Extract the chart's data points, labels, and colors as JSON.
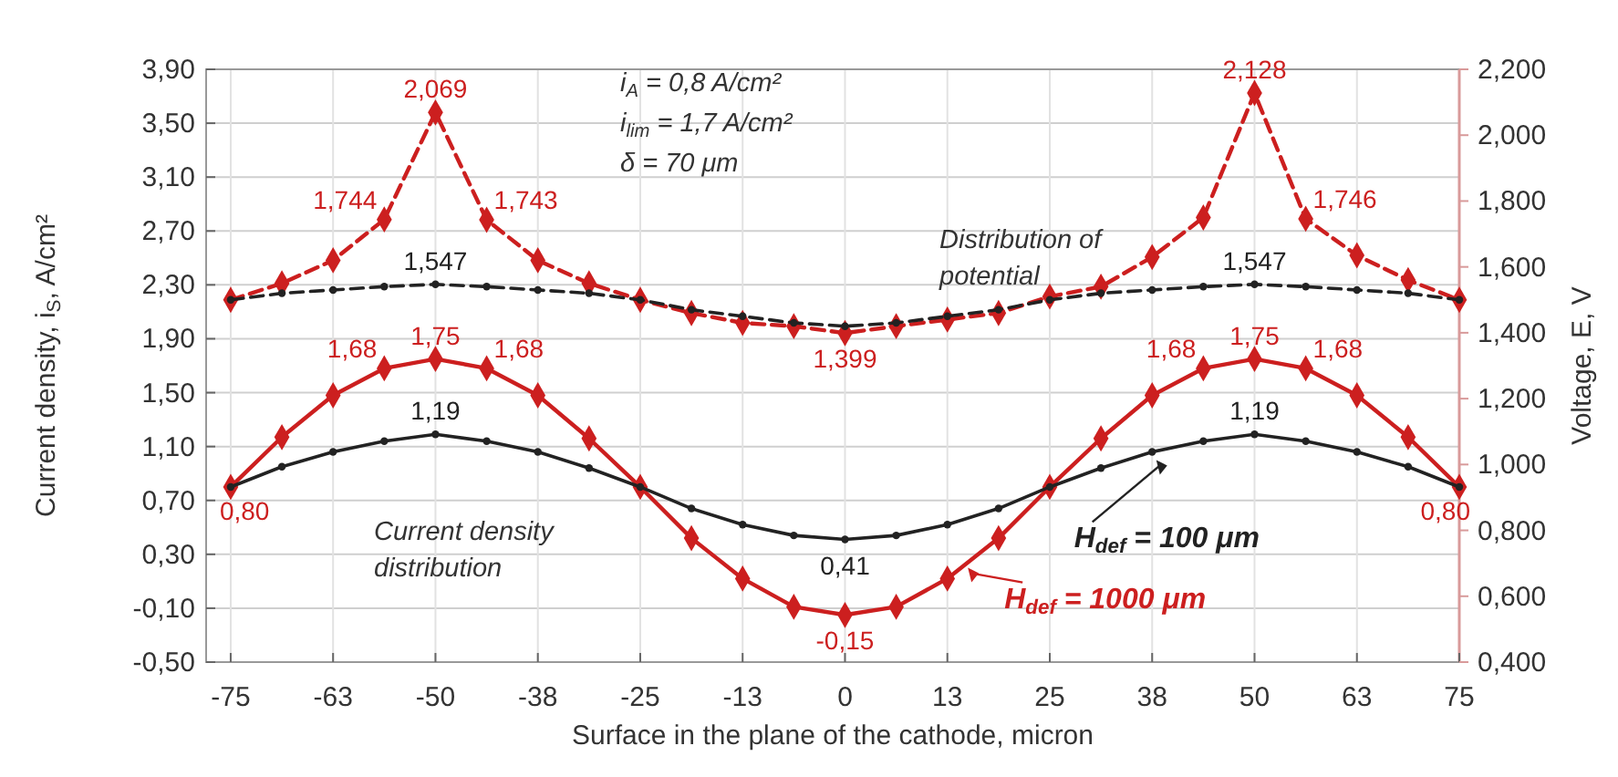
{
  "chart_data": {
    "type": "line",
    "xlabel": "Surface in the plane of the cathode, micron",
    "ylabel": "Current density, i$_{S}$, A/cm²",
    "y2label": "Voltage, E, V",
    "x": [
      -75,
      -68.75,
      -62.5,
      -56.25,
      -50,
      -43.75,
      -37.5,
      -31.25,
      -25,
      -18.75,
      -12.5,
      -6.25,
      0,
      6.25,
      12.5,
      18.75,
      25,
      31.25,
      37.5,
      43.75,
      50,
      56.25,
      62.5,
      68.75,
      75
    ],
    "xlim": [
      -78,
      75
    ],
    "xticks": [
      -75,
      {
        "value": -62.5,
        "label": "-63"
      },
      -50,
      {
        "value": -37.5,
        "label": "-38"
      },
      -25,
      {
        "value": -12.5,
        "label": "-13"
      },
      0,
      {
        "value": 12.5,
        "label": "13"
      },
      25,
      {
        "value": 37.5,
        "label": "38"
      },
      50,
      {
        "value": 62.5,
        "label": "63"
      },
      75
    ],
    "ylim": [
      -0.5,
      3.9
    ],
    "yticks": [
      {
        "value": -0.5,
        "label": "-0,50"
      },
      {
        "value": -0.1,
        "label": "-0,10"
      },
      {
        "value": 0.3,
        "label": "0,30"
      },
      {
        "value": 0.7,
        "label": "0,70"
      },
      {
        "value": 1.1,
        "label": "1,10"
      },
      {
        "value": 1.5,
        "label": "1,50"
      },
      {
        "value": 1.9,
        "label": "1,90"
      },
      {
        "value": 2.3,
        "label": "2,30"
      },
      {
        "value": 2.7,
        "label": "2,70"
      },
      {
        "value": 3.1,
        "label": "3,10"
      },
      {
        "value": 3.5,
        "label": "3,50"
      },
      {
        "value": 3.9,
        "label": "3,90"
      }
    ],
    "y2lim": [
      0.4,
      2.2
    ],
    "y2ticks": [
      {
        "value": 0.4,
        "label": "0,400"
      },
      {
        "value": 0.6,
        "label": "0,600"
      },
      {
        "value": 0.8,
        "label": "0,800"
      },
      {
        "value": 1.0,
        "label": "1,000"
      },
      {
        "value": 1.2,
        "label": "1,200"
      },
      {
        "value": 1.4,
        "label": "1,400"
      },
      {
        "value": 1.6,
        "label": "1,600"
      },
      {
        "value": 1.8,
        "label": "1,800"
      },
      {
        "value": 2.0,
        "label": "2,000"
      },
      {
        "value": 2.2,
        "label": "2,200"
      }
    ],
    "grid": true,
    "series": [
      {
        "color": "#222222",
        "marker": "circle",
        "line_style": "solid",
        "values": [
          0.8,
          0.95,
          1.06,
          1.14,
          1.19,
          1.14,
          1.06,
          0.94,
          0.8,
          0.64,
          0.52,
          0.44,
          0.41,
          0.44,
          0.52,
          0.64,
          0.8,
          0.94,
          1.06,
          1.14,
          1.19,
          1.14,
          1.06,
          0.95,
          0.8
        ],
        "value_labels": [
          null,
          null,
          null,
          null,
          "1,19",
          null,
          null,
          null,
          null,
          null,
          null,
          null,
          "0,41",
          null,
          null,
          null,
          null,
          null,
          null,
          null,
          "1,19",
          null,
          null,
          null,
          null
        ]
      },
      {
        "color": "#cc1f1f",
        "marker": "diamond",
        "line_style": "solid",
        "values": [
          0.8,
          1.17,
          1.48,
          1.68,
          1.75,
          1.68,
          1.48,
          1.16,
          0.8,
          0.42,
          0.12,
          -0.09,
          -0.15,
          -0.09,
          0.12,
          0.42,
          0.8,
          1.16,
          1.48,
          1.68,
          1.75,
          1.68,
          1.48,
          1.17,
          0.8
        ],
        "value_labels": [
          "0,80",
          null,
          null,
          "1,68",
          "1,75",
          "1,68",
          null,
          null,
          null,
          null,
          null,
          null,
          "-0,15",
          null,
          null,
          null,
          null,
          null,
          null,
          "1,68",
          "1,75",
          "1,68",
          null,
          null,
          "0,80"
        ]
      },
      {
        "color": "#222222",
        "marker": "circle",
        "line_style": "dashed",
        "axis": "y2",
        "values": [
          1.5,
          1.52,
          1.53,
          1.54,
          1.547,
          1.54,
          1.53,
          1.52,
          1.5,
          1.47,
          1.45,
          1.43,
          1.42,
          1.43,
          1.45,
          1.47,
          1.5,
          1.52,
          1.53,
          1.54,
          1.547,
          1.54,
          1.53,
          1.52,
          1.5
        ],
        "value_labels": [
          null,
          null,
          null,
          null,
          "1,547",
          null,
          null,
          null,
          null,
          null,
          null,
          null,
          null,
          null,
          null,
          null,
          null,
          null,
          null,
          null,
          "1,547",
          null,
          null,
          null,
          null
        ]
      },
      {
        "color": "#cc1f1f",
        "marker": "diamond",
        "line_style": "dashed",
        "axis": "y2",
        "values": [
          1.5,
          1.55,
          1.62,
          1.744,
          2.069,
          1.743,
          1.62,
          1.55,
          1.5,
          1.46,
          1.43,
          1.42,
          1.399,
          1.42,
          1.44,
          1.46,
          1.51,
          1.54,
          1.63,
          1.75,
          2.128,
          1.746,
          1.635,
          1.56,
          1.5
        ],
        "value_labels": [
          null,
          null,
          null,
          "1,744",
          "2,069",
          "1,743",
          null,
          null,
          null,
          null,
          null,
          null,
          "1,399",
          null,
          null,
          null,
          null,
          null,
          null,
          null,
          "2,128",
          "1,746",
          null,
          null,
          null
        ]
      }
    ],
    "annotations": [
      "i$_{A}$ = 0,8 A/cm²",
      "i$_{lim}$ = 1,7 A/cm²",
      "δ = 70 μm",
      "Distribution of potential",
      "Current density distribution",
      {
        "text": "H$_{def}$ = 100 μm",
        "x": 38,
        "y": 1.0
      },
      {
        "text": "H$_{def}$ = 1000 μm",
        "x": 15,
        "y": 0.2
      }
    ]
  }
}
